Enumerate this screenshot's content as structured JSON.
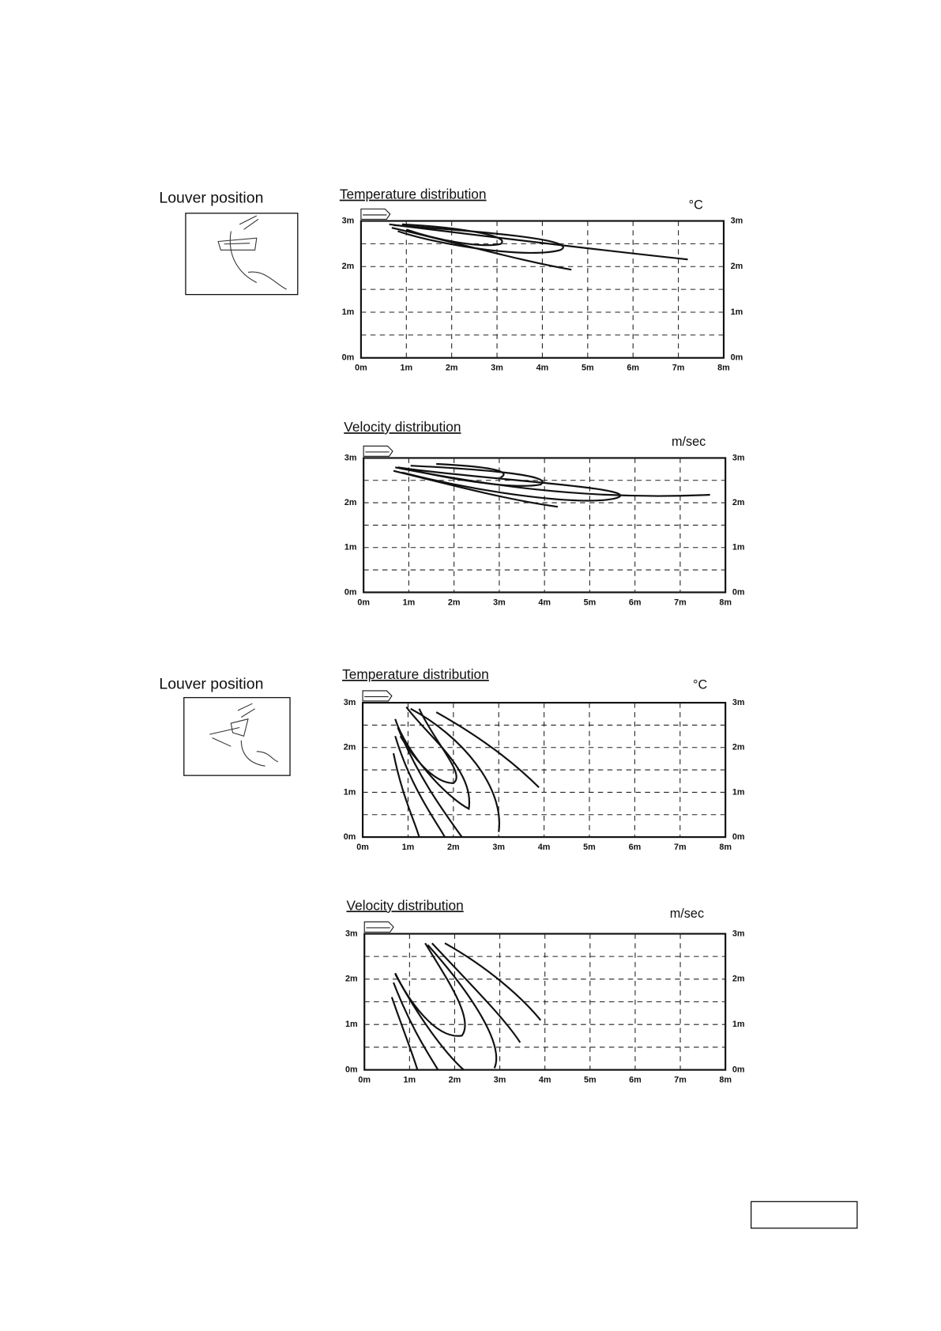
{
  "sections": [
    {
      "louver_label": "Louver position",
      "charts": [
        {
          "title": "Temperature distribution",
          "unit": "°C",
          "xticks": [
            "0m",
            "1m",
            "2m",
            "3m",
            "4m",
            "5m",
            "6m",
            "7m",
            "8m"
          ],
          "yticks": [
            "0m",
            "1m",
            "2m",
            "3m"
          ]
        },
        {
          "title": "Velocity distribution",
          "unit": "m/sec",
          "xticks": [
            "0m",
            "1m",
            "2m",
            "3m",
            "4m",
            "5m",
            "6m",
            "7m",
            "8m"
          ],
          "yticks": [
            "0m",
            "1m",
            "2m",
            "3m"
          ]
        }
      ]
    },
    {
      "louver_label": "Louver position",
      "charts": [
        {
          "title": "Temperature distribution",
          "unit": "°C",
          "xticks": [
            "0m",
            "1m",
            "2m",
            "3m",
            "4m",
            "5m",
            "6m",
            "7m",
            "8m"
          ],
          "yticks": [
            "0m",
            "1m",
            "2m",
            "3m"
          ]
        },
        {
          "title": "Velocity distribution",
          "unit": "m/sec",
          "xticks": [
            "0m",
            "1m",
            "2m",
            "3m",
            "4m",
            "5m",
            "6m",
            "7m",
            "8m"
          ],
          "yticks": [
            "0m",
            "1m",
            "2m",
            "3m"
          ]
        }
      ]
    }
  ]
}
